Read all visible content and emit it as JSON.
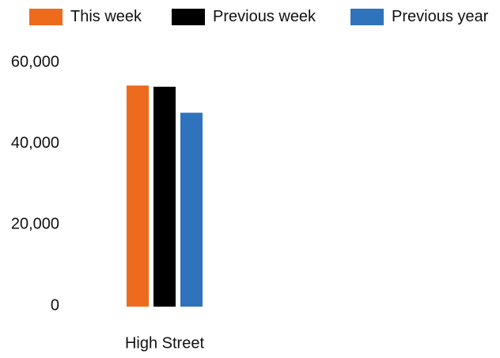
{
  "chart_data": {
    "type": "bar",
    "title": "",
    "xlabel": "",
    "ylabel": "",
    "categories": [
      "High Street"
    ],
    "series": [
      {
        "name": "This week",
        "color": "#EE6A1D",
        "values": [
          54500
        ]
      },
      {
        "name": "Previous week",
        "color": "#000000",
        "values": [
          54200
        ]
      },
      {
        "name": "Previous year",
        "color": "#2F73BC",
        "values": [
          47800
        ]
      }
    ],
    "ylim": [
      0,
      60000
    ],
    "yticks": [
      0,
      20000,
      40000,
      60000
    ],
    "ytick_labels": [
      "0",
      "20,000",
      "40,000",
      "60,000"
    ],
    "grid": false,
    "legend_position": "top"
  }
}
